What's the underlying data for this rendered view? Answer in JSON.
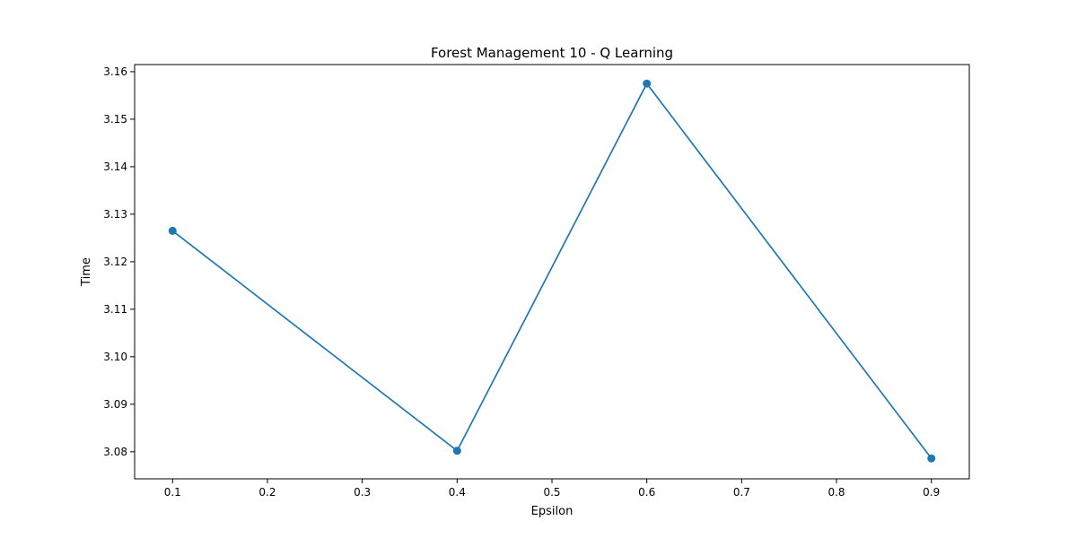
{
  "chart_data": {
    "type": "line",
    "title": "Forest Management 10 - Q Learning",
    "xlabel": "Epsilon",
    "ylabel": "Time",
    "xlim": [
      0.06,
      0.94
    ],
    "ylim": [
      3.0743,
      3.1615
    ],
    "x_ticks": [
      0.1,
      0.2,
      0.3,
      0.4,
      0.5,
      0.6,
      0.7,
      0.8,
      0.9
    ],
    "x_tick_labels": [
      "0.1",
      "0.2",
      "0.3",
      "0.4",
      "0.5",
      "0.6",
      "0.7",
      "0.8",
      "0.9"
    ],
    "y_ticks": [
      3.08,
      3.09,
      3.1,
      3.11,
      3.12,
      3.13,
      3.14,
      3.15,
      3.16
    ],
    "y_tick_labels": [
      "3.08",
      "3.09",
      "3.10",
      "3.11",
      "3.12",
      "3.13",
      "3.14",
      "3.15",
      "3.16"
    ],
    "grid": false,
    "legend": "none",
    "series": [
      {
        "color": "#1f77b4",
        "marker": "circle",
        "x": [
          0.1,
          0.4,
          0.6,
          0.9
        ],
        "y": [
          3.1265,
          3.0802,
          3.1575,
          3.0786
        ]
      }
    ]
  }
}
